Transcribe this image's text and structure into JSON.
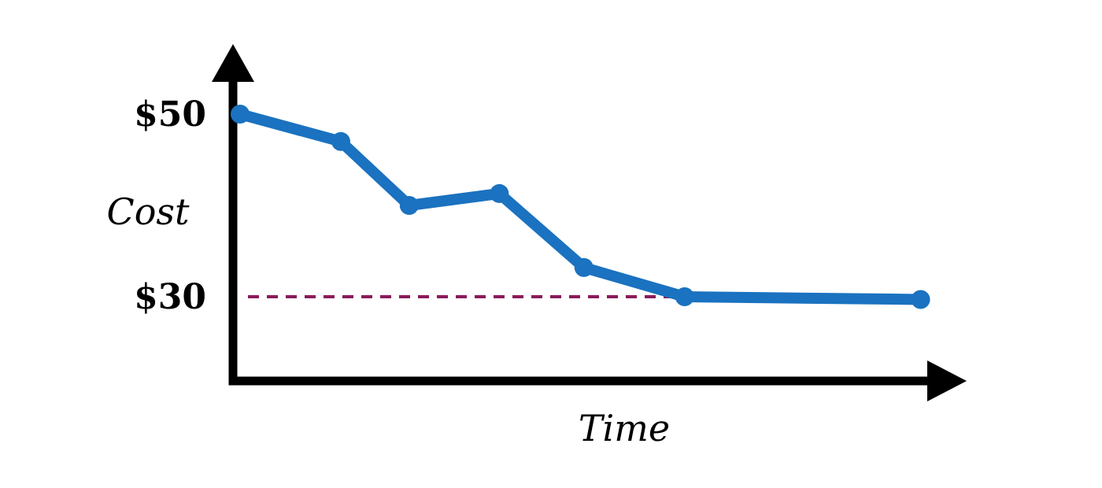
{
  "chart_data": {
    "type": "line",
    "title": "",
    "xlabel": "Time",
    "ylabel": "Cost",
    "ylim": [
      24,
      54
    ],
    "xlim": [
      0,
      10
    ],
    "y_ticks": [
      {
        "value": 50,
        "label": "$50"
      },
      {
        "value": 30,
        "label": "$30"
      }
    ],
    "grid": false,
    "legend": "none",
    "series": [
      {
        "x": [
          0,
          1.43,
          2.4,
          3.68,
          4.88,
          6.31,
          9.66
        ],
        "y": [
          50,
          47,
          40,
          41.3,
          33.2,
          30,
          29.7
        ]
      }
    ],
    "reference_line": {
      "y": 30,
      "x_start": 0,
      "x_end": 6.31,
      "style": "dashed"
    },
    "colors": {
      "series": "#1a72c0",
      "reference": "#8b1a5a",
      "axes": "#000000"
    }
  }
}
